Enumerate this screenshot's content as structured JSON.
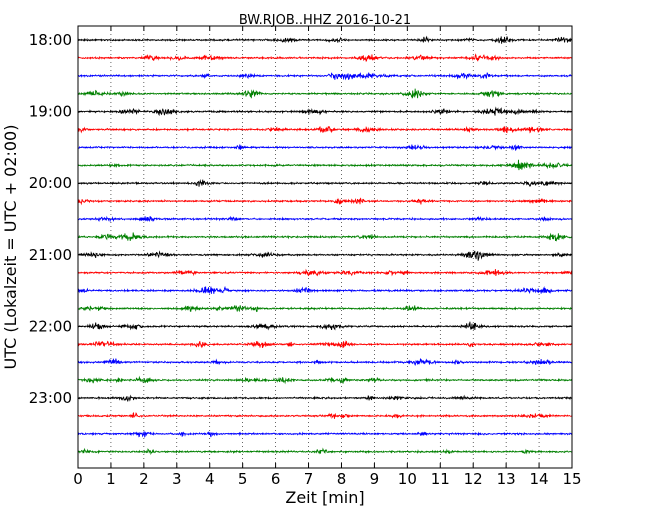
{
  "chart_data": {
    "type": "line",
    "title": "BW.RJOB..HHZ 2016-10-21",
    "xlabel": "Zeit  [min]",
    "ylabel": "UTC (Lokalzeit = UTC + 02:00)",
    "xlim": [
      0,
      15
    ],
    "x_ticks": [
      "0",
      "1",
      "2",
      "3",
      "4",
      "5",
      "6",
      "7",
      "8",
      "9",
      "10",
      "11",
      "12",
      "13",
      "14",
      "15"
    ],
    "y_ticks": [
      "18:00",
      "19:00",
      "20:00",
      "21:00",
      "22:00",
      "23:00"
    ],
    "grid": "vertical dotted at each minute",
    "trace_interval_minutes": 15,
    "trace_start_times": [
      "18:00",
      "18:15",
      "18:30",
      "18:45",
      "19:00",
      "19:15",
      "19:30",
      "19:45",
      "20:00",
      "20:15",
      "20:30",
      "20:45",
      "21:00",
      "21:15",
      "21:30",
      "21:45",
      "22:00",
      "22:15",
      "22:30",
      "22:45",
      "23:00",
      "23:15",
      "23:30",
      "23:45"
    ],
    "series_colors": [
      "#000000",
      "#ff0000",
      "#0000ff",
      "#008000"
    ]
  }
}
